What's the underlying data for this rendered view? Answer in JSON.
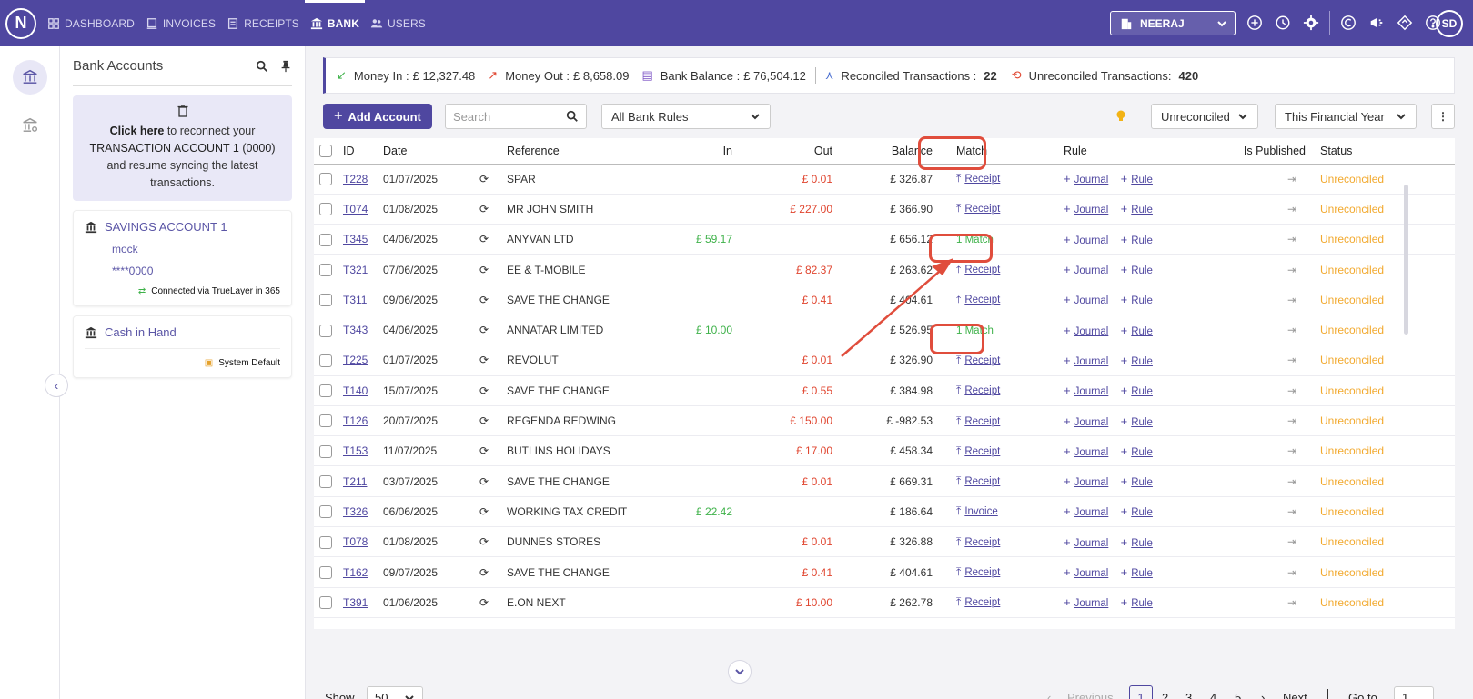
{
  "nav": {
    "logo": "N",
    "items": [
      {
        "label": "DASHBOARD"
      },
      {
        "label": "INVOICES"
      },
      {
        "label": "RECEIPTS"
      },
      {
        "label": "BANK"
      },
      {
        "label": "USERS"
      }
    ],
    "company": "NEERAJ",
    "avatar": "SD",
    "active_color": "#4f47a0"
  },
  "accounts_panel": {
    "title": "Bank Accounts",
    "reconnect": {
      "link": "Click here",
      "text1": "to reconnect your",
      "account": "TRANSACTION ACCOUNT 1 (0000)",
      "text2": "and resume syncing the latest transactions."
    },
    "accounts": [
      {
        "name": "SAVINGS ACCOUNT 1",
        "provider": "mock",
        "number": "****0000",
        "footer": "Connected via TrueLayer in 365"
      },
      {
        "name": "Cash in Hand",
        "footer": "System Default"
      }
    ]
  },
  "summary": {
    "money_in_label": "Money In :",
    "money_in": "£ 12,327.48",
    "money_out_label": "Money Out :",
    "money_out": "£ 8,658.09",
    "balance_label": "Bank Balance :",
    "balance": "£ 76,504.12",
    "reconciled_label": "Reconciled Transactions :",
    "reconciled": "22",
    "unreconciled_label": "Unreconciled Transactions:",
    "unreconciled": "420"
  },
  "toolbar": {
    "add_label": "Add Account",
    "search_placeholder": "Search",
    "rules_select": "All Bank Rules",
    "status_select": "Unreconciled",
    "period_select": "This Financial Year"
  },
  "table": {
    "headers": {
      "id": "ID",
      "date": "Date",
      "reference": "Reference",
      "in": "In",
      "out": "Out",
      "balance": "Balance",
      "match": "Match",
      "rule": "Rule",
      "published": "Is Published",
      "status": "Status"
    },
    "rows": [
      {
        "id": "T228",
        "date": "01/07/2025",
        "ref": "SPAR",
        "in": "",
        "out": "£ 0.01",
        "balance": "£ 326.87",
        "match": "Receipt",
        "match_type": "action",
        "status": "Unreconciled"
      },
      {
        "id": "T074",
        "date": "01/08/2025",
        "ref": "MR JOHN SMITH",
        "in": "",
        "out": "£ 227.00",
        "balance": "£ 366.90",
        "match": "Receipt",
        "match_type": "action",
        "status": "Unreconciled"
      },
      {
        "id": "T345",
        "date": "04/06/2025",
        "ref": "ANYVAN LTD",
        "in": "£ 59.17",
        "out": "",
        "balance": "£ 656.12",
        "match": "1 Match",
        "match_type": "match",
        "status": "Unreconciled"
      },
      {
        "id": "T321",
        "date": "07/06/2025",
        "ref": "EE & T-MOBILE",
        "in": "",
        "out": "£ 82.37",
        "balance": "£ 263.62",
        "match": "Receipt",
        "match_type": "action",
        "status": "Unreconciled"
      },
      {
        "id": "T311",
        "date": "09/06/2025",
        "ref": "SAVE THE CHANGE",
        "in": "",
        "out": "£ 0.41",
        "balance": "£ 404.61",
        "match": "Receipt",
        "match_type": "action",
        "status": "Unreconciled"
      },
      {
        "id": "T343",
        "date": "04/06/2025",
        "ref": "ANNATAR LIMITED",
        "in": "£ 10.00",
        "out": "",
        "balance": "£ 526.95",
        "match": "1 Match",
        "match_type": "match",
        "status": "Unreconciled"
      },
      {
        "id": "T225",
        "date": "01/07/2025",
        "ref": "REVOLUT",
        "in": "",
        "out": "£ 0.01",
        "balance": "£ 326.90",
        "match": "Receipt",
        "match_type": "action",
        "status": "Unreconciled"
      },
      {
        "id": "T140",
        "date": "15/07/2025",
        "ref": "SAVE THE CHANGE",
        "in": "",
        "out": "£ 0.55",
        "balance": "£ 384.98",
        "match": "Receipt",
        "match_type": "action",
        "status": "Unreconciled"
      },
      {
        "id": "T126",
        "date": "20/07/2025",
        "ref": "REGENDA REDWING",
        "in": "",
        "out": "£ 150.00",
        "balance": "£ -982.53",
        "match": "Receipt",
        "match_type": "action",
        "status": "Unreconciled"
      },
      {
        "id": "T153",
        "date": "11/07/2025",
        "ref": "BUTLINS HOLIDAYS",
        "in": "",
        "out": "£ 17.00",
        "balance": "£ 458.34",
        "match": "Receipt",
        "match_type": "action",
        "status": "Unreconciled"
      },
      {
        "id": "T211",
        "date": "03/07/2025",
        "ref": "SAVE THE CHANGE",
        "in": "",
        "out": "£ 0.01",
        "balance": "£ 669.31",
        "match": "Receipt",
        "match_type": "action",
        "status": "Unreconciled"
      },
      {
        "id": "T326",
        "date": "06/06/2025",
        "ref": "WORKING TAX CREDIT",
        "in": "£ 22.42",
        "out": "",
        "balance": "£ 186.64",
        "match": "Invoice",
        "match_type": "action",
        "status": "Unreconciled"
      },
      {
        "id": "T078",
        "date": "01/08/2025",
        "ref": "DUNNES STORES",
        "in": "",
        "out": "£ 0.01",
        "balance": "£ 326.88",
        "match": "Receipt",
        "match_type": "action",
        "status": "Unreconciled"
      },
      {
        "id": "T162",
        "date": "09/07/2025",
        "ref": "SAVE THE CHANGE",
        "in": "",
        "out": "£ 0.41",
        "balance": "£ 404.61",
        "match": "Receipt",
        "match_type": "action",
        "status": "Unreconciled"
      },
      {
        "id": "T391",
        "date": "01/06/2025",
        "ref": "E.ON NEXT",
        "in": "",
        "out": "£ 10.00",
        "balance": "£ 262.78",
        "match": "Receipt",
        "match_type": "action",
        "status": "Unreconciled"
      }
    ],
    "rule_journal": "Journal",
    "rule_rule": "Rule"
  },
  "pager": {
    "show_label": "Show",
    "page_size": "50",
    "prev": "Previous",
    "pages": [
      "1",
      "2",
      "3",
      "4",
      "5"
    ],
    "next": "Next",
    "goto_label": "Go to",
    "goto_value": "1"
  }
}
